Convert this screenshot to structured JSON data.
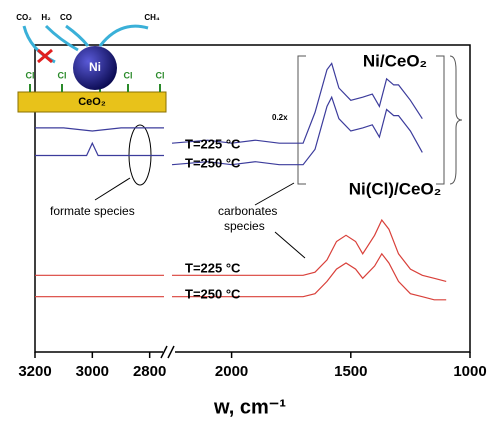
{
  "chart_data": {
    "type": "line",
    "x_label": "w, cm⁻¹",
    "xlim": [
      3200,
      1000
    ],
    "xbreak": [
      2750,
      2250
    ],
    "xticks": [
      3200,
      3000,
      2800,
      2000,
      1500,
      1000
    ],
    "ylim": [
      0,
      100
    ],
    "series": [
      {
        "name": "T=225 °C",
        "color": "#3c3c9c",
        "x": [
          3200,
          3100,
          3000,
          2900,
          2800,
          2750,
          2500,
          2250,
          2100,
          2000,
          1900,
          1800,
          1700,
          1650,
          1600,
          1580,
          1550,
          1500,
          1450,
          1410,
          1380,
          1350,
          1320,
          1300,
          1250,
          1200
        ],
        "values": [
          73,
          73,
          72,
          73,
          73,
          73,
          null,
          68,
          69,
          68,
          69,
          68,
          68,
          78,
          92,
          94,
          86,
          82,
          83,
          84,
          80,
          89,
          87,
          87,
          82,
          76
        ]
      },
      {
        "name": "T=250 °C",
        "color": "#3c3c9c",
        "x": [
          3200,
          3100,
          3020,
          3000,
          2980,
          2900,
          2800,
          2750,
          2500,
          2250,
          2100,
          2000,
          1900,
          1800,
          1700,
          1650,
          1600,
          1580,
          1550,
          1500,
          1450,
          1410,
          1380,
          1350,
          1320,
          1300,
          1250,
          1200
        ],
        "values": [
          64,
          64,
          64,
          68,
          64,
          64,
          64,
          64,
          null,
          61,
          62,
          61,
          62,
          61,
          61,
          66,
          80,
          83,
          76,
          72,
          73,
          74,
          70,
          79,
          77,
          77,
          72,
          65
        ]
      },
      {
        "name": "T=225 °C",
        "color": "#d9403a",
        "x": [
          3200,
          3000,
          2800,
          2750,
          2500,
          2250,
          2000,
          1800,
          1700,
          1650,
          1600,
          1560,
          1520,
          1480,
          1450,
          1400,
          1370,
          1340,
          1300,
          1250,
          1200,
          1150,
          1100
        ],
        "values": [
          25,
          25,
          25,
          25,
          null,
          25,
          25,
          25,
          25,
          26,
          30,
          36,
          38,
          36,
          32,
          38,
          43,
          40,
          32,
          27,
          25,
          24,
          23
        ]
      },
      {
        "name": "T=250 °C",
        "color": "#d9403a",
        "x": [
          3200,
          3000,
          2800,
          2750,
          2500,
          2250,
          2000,
          1800,
          1700,
          1650,
          1600,
          1560,
          1520,
          1480,
          1450,
          1400,
          1370,
          1340,
          1300,
          1250,
          1200,
          1150,
          1100
        ],
        "values": [
          18,
          18,
          18,
          18,
          null,
          18,
          18,
          18,
          18,
          19,
          23,
          27,
          29,
          27,
          24,
          28,
          32,
          29,
          23,
          19,
          18,
          17,
          17
        ]
      }
    ],
    "annotations": [
      "Ni/CeO₂",
      "0.2x",
      "Ni(Cl)/CeO₂",
      "formate species",
      "carbonates",
      "species"
    ],
    "inset": {
      "gases": [
        "CO₂",
        "H₂",
        "CO",
        "CH₄"
      ],
      "particle": "Ni",
      "ligand": "Cl",
      "support": "CeO₂"
    }
  }
}
